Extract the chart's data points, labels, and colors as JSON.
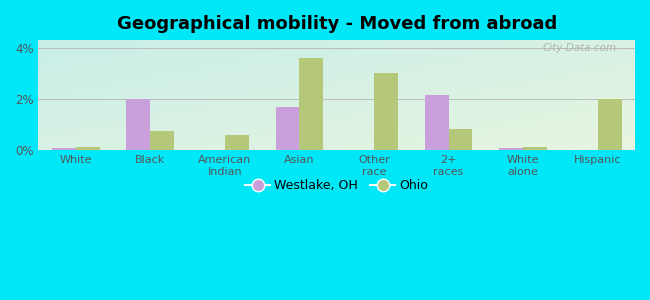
{
  "title": "Geographical mobility - Moved from abroad",
  "categories": [
    "White",
    "Black",
    "American\nIndian",
    "Asian",
    "Other\nrace",
    "2+\nraces",
    "White\nalone",
    "Hispanic"
  ],
  "westlake_values": [
    0.1,
    2.0,
    0.0,
    1.7,
    0.0,
    2.15,
    0.1,
    0.0
  ],
  "ohio_values": [
    0.15,
    0.75,
    0.6,
    3.6,
    3.0,
    0.85,
    0.15,
    2.0
  ],
  "westlake_color": "#c9a0dc",
  "ohio_color": "#b5c87a",
  "bg_top_left": "#c8eee8",
  "bg_bottom_right": "#e8f5e0",
  "outer_bg": "#00e8f8",
  "ylim": [
    0,
    4.3
  ],
  "yticks": [
    0,
    2,
    4
  ],
  "ytick_labels": [
    "0%",
    "2%",
    "4%"
  ],
  "title_fontsize": 13,
  "legend_westlake": "Westlake, OH",
  "legend_ohio": "Ohio",
  "bar_width": 0.32,
  "watermark": "City-Data.com"
}
